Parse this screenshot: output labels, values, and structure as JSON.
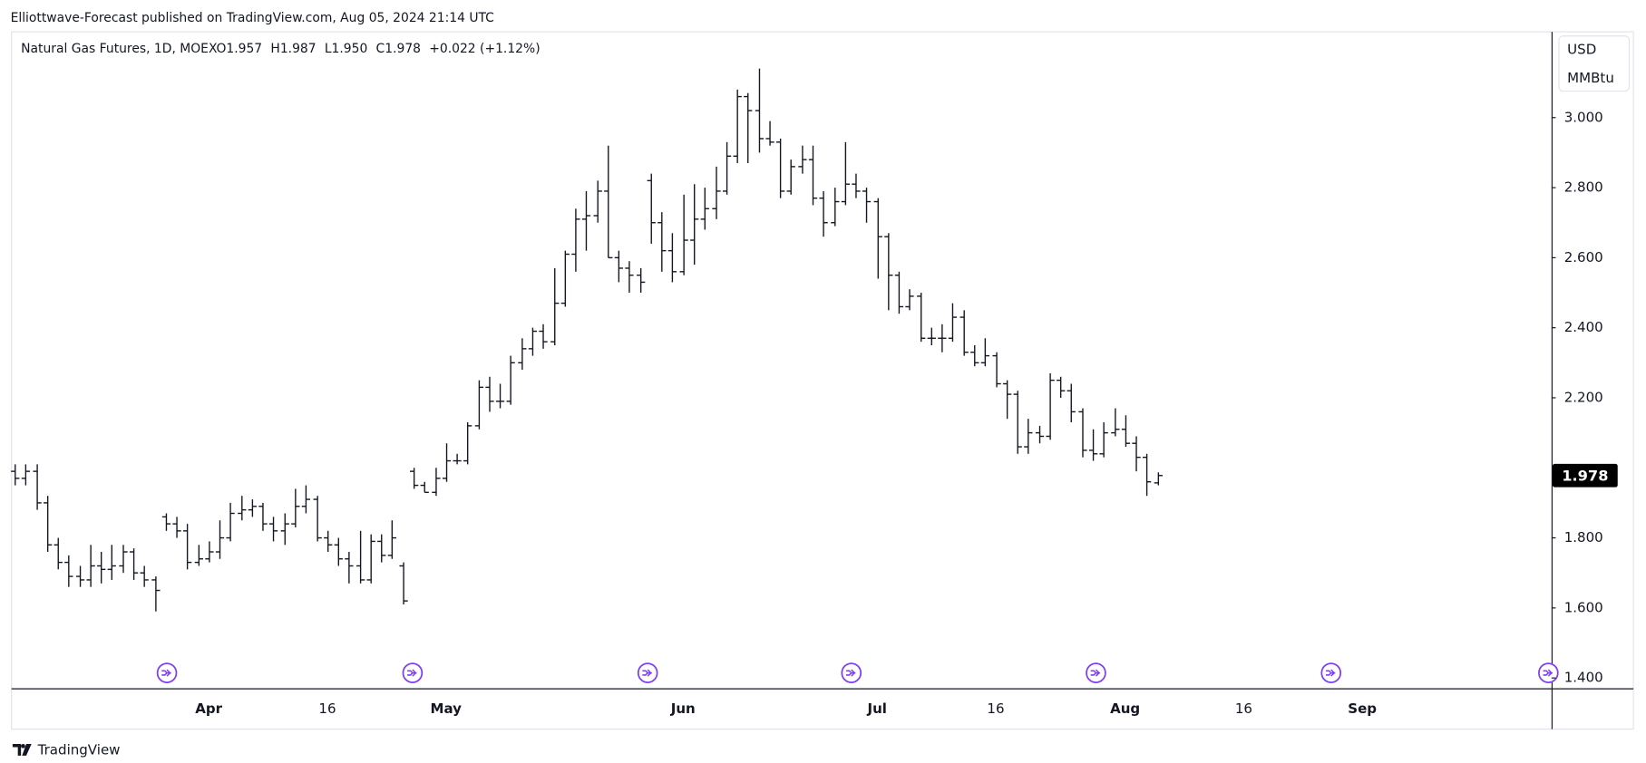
{
  "header": {
    "published": "Elliottwave-Forecast published on TradingView.com, Aug 05, 2024 21:14 UTC"
  },
  "legend": {
    "symbol": "Natural Gas Futures, 1D, MOEX",
    "items": [
      "O1.957",
      "H1.987",
      "L1.950",
      "C1.978",
      "+0.022 (+1.12%)"
    ]
  },
  "footer": {
    "brand": "TradingView"
  },
  "chart_data": {
    "type": "ohlc",
    "currency": [
      "USD",
      "MMBtu"
    ],
    "color": "#131722",
    "categories": [
      null,
      null,
      null,
      null,
      null,
      null,
      null,
      null,
      null,
      null,
      null,
      null,
      null,
      null,
      null,
      null,
      null,
      null,
      "Apr",
      null,
      null,
      null,
      null,
      null,
      null,
      null,
      null,
      null,
      null,
      "16",
      null,
      null,
      null,
      null,
      null,
      null,
      null,
      null,
      null,
      null,
      "May",
      null,
      null,
      null,
      null,
      null,
      null,
      null,
      null,
      null,
      null,
      null,
      null,
      null,
      null,
      null,
      null,
      null,
      null,
      null,
      null,
      null,
      "Jun",
      null,
      null,
      null,
      null,
      null,
      null,
      null,
      null,
      null,
      null,
      null,
      null,
      null,
      null,
      null,
      null,
      null,
      "Jul",
      null,
      null,
      null,
      null,
      null,
      null,
      null,
      null,
      null,
      null,
      "16",
      null,
      null,
      null,
      null,
      null,
      null,
      null,
      null,
      null,
      null,
      null,
      "Aug",
      null,
      null,
      null,
      null,
      null,
      null,
      null,
      null,
      null,
      null,
      "16",
      null,
      null,
      null,
      null,
      null,
      null,
      null,
      null,
      null,
      null,
      "Sep"
    ],
    "open": [
      1.99,
      1.97,
      1.99,
      1.9,
      1.78,
      1.73,
      1.69,
      1.68,
      1.72,
      1.71,
      1.72,
      1.76,
      1.7,
      1.68,
      1.86,
      1.84,
      1.82,
      1.73,
      1.74,
      1.76,
      1.8,
      1.87,
      1.88,
      1.89,
      1.84,
      1.82,
      1.84,
      1.89,
      1.91,
      1.8,
      1.78,
      1.74,
      1.72,
      1.68,
      1.79,
      1.75,
      1.72,
      1.99,
      1.95,
      1.93,
      1.97,
      2.02,
      2.02,
      2.12,
      2.23,
      2.19,
      2.19,
      2.3,
      2.34,
      2.39,
      2.36,
      2.47,
      2.61,
      2.71,
      2.72,
      2.79,
      2.6,
      2.57,
      2.55,
      2.82,
      2.7,
      2.62,
      2.56,
      2.65,
      2.71,
      2.74,
      2.79,
      2.89,
      3.06,
      3.02,
      2.94,
      2.93,
      2.79,
      2.86,
      2.88,
      2.77,
      2.7,
      2.76,
      2.81,
      2.79,
      2.76,
      2.66,
      2.55,
      2.46,
      2.49,
      2.37,
      2.37,
      2.37,
      2.43,
      2.33,
      2.3,
      2.32,
      2.24,
      2.21,
      2.06,
      2.1,
      2.09,
      2.25,
      2.22,
      2.16,
      2.05,
      2.04,
      2.1,
      2.11,
      2.07,
      2.03,
      1.957,
      null,
      null,
      null,
      null,
      null,
      null,
      null,
      null,
      null,
      null,
      null,
      null,
      null,
      null,
      null,
      null,
      null,
      null,
      null
    ],
    "high": [
      2.01,
      2.01,
      2.01,
      1.92,
      1.8,
      1.75,
      1.72,
      1.78,
      1.76,
      1.78,
      1.78,
      1.77,
      1.72,
      1.69,
      1.87,
      1.86,
      1.84,
      1.78,
      1.79,
      1.85,
      1.9,
      1.92,
      1.91,
      1.9,
      1.86,
      1.87,
      1.94,
      1.95,
      1.92,
      1.82,
      1.8,
      1.76,
      1.82,
      1.81,
      1.81,
      1.85,
      1.73,
      2.0,
      1.96,
      2.0,
      2.07,
      2.04,
      2.13,
      2.25,
      2.26,
      2.24,
      2.32,
      2.37,
      2.4,
      2.41,
      2.57,
      2.62,
      2.74,
      2.79,
      2.82,
      2.92,
      2.62,
      2.59,
      2.57,
      2.84,
      2.73,
      2.67,
      2.78,
      2.81,
      2.8,
      2.86,
      2.93,
      3.08,
      3.07,
      3.14,
      2.99,
      2.94,
      2.88,
      2.92,
      2.92,
      2.79,
      2.8,
      2.93,
      2.84,
      2.8,
      2.77,
      2.67,
      2.56,
      2.51,
      2.5,
      2.4,
      2.41,
      2.47,
      2.45,
      2.35,
      2.37,
      2.33,
      2.25,
      2.22,
      2.14,
      2.12,
      2.27,
      2.26,
      2.24,
      2.17,
      2.11,
      2.13,
      2.17,
      2.15,
      2.09,
      2.04,
      1.987,
      null,
      null,
      null,
      null,
      null,
      null,
      null,
      null,
      null,
      null,
      null,
      null,
      null,
      null,
      null,
      null,
      null,
      null,
      null
    ],
    "low": [
      1.95,
      1.95,
      1.88,
      1.76,
      1.71,
      1.66,
      1.66,
      1.66,
      1.67,
      1.68,
      1.7,
      1.68,
      1.66,
      1.59,
      1.82,
      1.8,
      1.71,
      1.72,
      1.73,
      1.74,
      1.79,
      1.85,
      1.86,
      1.82,
      1.79,
      1.78,
      1.83,
      1.87,
      1.79,
      1.76,
      1.72,
      1.67,
      1.67,
      1.67,
      1.73,
      1.74,
      1.61,
      1.94,
      1.93,
      1.92,
      1.96,
      2.01,
      2.01,
      2.11,
      2.16,
      2.17,
      2.18,
      2.28,
      2.32,
      2.34,
      2.35,
      2.46,
      2.56,
      2.62,
      2.7,
      2.6,
      2.53,
      2.5,
      2.5,
      2.64,
      2.56,
      2.53,
      2.55,
      2.58,
      2.68,
      2.71,
      2.78,
      2.87,
      2.87,
      2.9,
      2.92,
      2.77,
      2.78,
      2.84,
      2.75,
      2.66,
      2.69,
      2.75,
      2.77,
      2.7,
      2.54,
      2.45,
      2.44,
      2.45,
      2.36,
      2.35,
      2.33,
      2.36,
      2.32,
      2.29,
      2.29,
      2.23,
      2.14,
      2.04,
      2.04,
      2.07,
      2.08,
      2.2,
      2.13,
      2.03,
      2.02,
      2.03,
      2.09,
      2.06,
      1.99,
      1.92,
      1.95,
      null,
      null,
      null,
      null,
      null,
      null,
      null,
      null,
      null,
      null,
      null,
      null,
      null,
      null,
      null,
      null,
      null,
      null,
      null
    ],
    "close": [
      1.97,
      1.99,
      1.9,
      1.78,
      1.73,
      1.69,
      1.68,
      1.72,
      1.71,
      1.72,
      1.76,
      1.7,
      1.68,
      1.65,
      1.84,
      1.82,
      1.73,
      1.74,
      1.76,
      1.8,
      1.87,
      1.88,
      1.89,
      1.84,
      1.82,
      1.84,
      1.89,
      1.91,
      1.8,
      1.78,
      1.74,
      1.72,
      1.68,
      1.79,
      1.75,
      1.8,
      1.62,
      1.95,
      1.93,
      1.97,
      2.02,
      2.02,
      2.12,
      2.23,
      2.19,
      2.19,
      2.3,
      2.34,
      2.39,
      2.36,
      2.47,
      2.61,
      2.71,
      2.72,
      2.79,
      2.6,
      2.57,
      2.55,
      2.53,
      2.7,
      2.62,
      2.56,
      2.65,
      2.71,
      2.74,
      2.79,
      2.89,
      3.06,
      3.02,
      2.94,
      2.93,
      2.79,
      2.86,
      2.88,
      2.77,
      2.7,
      2.76,
      2.81,
      2.79,
      2.76,
      2.66,
      2.55,
      2.46,
      2.49,
      2.37,
      2.37,
      2.37,
      2.43,
      2.33,
      2.3,
      2.32,
      2.24,
      2.21,
      2.06,
      2.1,
      2.09,
      2.25,
      2.22,
      2.16,
      2.05,
      2.04,
      2.1,
      2.11,
      2.07,
      2.03,
      1.96,
      1.978,
      null,
      null,
      null,
      null,
      null,
      null,
      null,
      null,
      null,
      null,
      null,
      null,
      null,
      null,
      null,
      null,
      null,
      null,
      null
    ],
    "last_price": {
      "value": 1.978,
      "label": "1.978"
    },
    "ylim": [
      1.369,
      3.245
    ],
    "yticks": [
      {
        "value": 1.4,
        "label": "1.400"
      },
      {
        "value": 1.6,
        "label": "1.600"
      },
      {
        "value": 1.8,
        "label": "1.800"
      },
      {
        "value": 2.2,
        "label": "2.200"
      },
      {
        "value": 2.4,
        "label": "2.400"
      },
      {
        "value": 2.6,
        "label": "2.600"
      },
      {
        "value": 2.8,
        "label": "2.800"
      },
      {
        "value": 3.0,
        "label": "3.000"
      }
    ],
    "grid": false
  }
}
